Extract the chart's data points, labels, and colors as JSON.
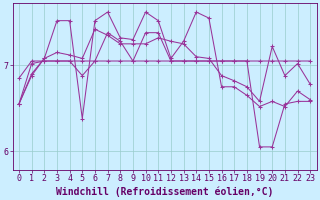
{
  "xlabel": "Windchill (Refroidissement éolien,°C)",
  "background_color": "#cceeff",
  "line_color": "#993399",
  "grid_color": "#99cccc",
  "axis_color": "#660066",
  "xlim": [
    -0.5,
    23.5
  ],
  "ylim": [
    5.78,
    7.72
  ],
  "yticks": [
    6,
    7
  ],
  "xticks": [
    0,
    1,
    2,
    3,
    4,
    5,
    6,
    7,
    8,
    9,
    10,
    11,
    12,
    13,
    14,
    15,
    16,
    17,
    18,
    19,
    20,
    21,
    22,
    23
  ],
  "series": [
    [
      6.55,
      7.02,
      7.05,
      7.05,
      7.05,
      7.05,
      7.05,
      7.05,
      7.05,
      7.05,
      7.05,
      7.05,
      7.05,
      7.05,
      7.05,
      7.05,
      7.05,
      7.05,
      7.05,
      7.05,
      7.05,
      7.05,
      7.05,
      7.05
    ],
    [
      6.55,
      6.9,
      7.08,
      7.15,
      7.12,
      7.08,
      7.42,
      7.35,
      7.25,
      7.25,
      7.25,
      7.32,
      7.28,
      7.25,
      7.1,
      7.08,
      6.88,
      6.82,
      6.75,
      6.58,
      7.22,
      6.88,
      7.02,
      6.78
    ],
    [
      6.55,
      6.88,
      7.08,
      7.52,
      7.52,
      6.38,
      7.52,
      7.62,
      7.32,
      7.3,
      7.62,
      7.52,
      7.08,
      7.28,
      7.62,
      7.55,
      6.75,
      6.75,
      6.65,
      6.52,
      6.58,
      6.52,
      6.7,
      6.6
    ],
    [
      6.85,
      7.05,
      7.05,
      7.05,
      7.05,
      6.88,
      7.05,
      7.38,
      7.28,
      7.05,
      7.38,
      7.38,
      7.05,
      7.05,
      7.05,
      7.05,
      7.05,
      7.05,
      7.05,
      6.05,
      6.05,
      6.55,
      6.58,
      6.58
    ]
  ],
  "figsize": [
    3.2,
    2.0
  ],
  "dpi": 100,
  "tick_fontsize": 6.0,
  "xlabel_fontsize": 7.0
}
